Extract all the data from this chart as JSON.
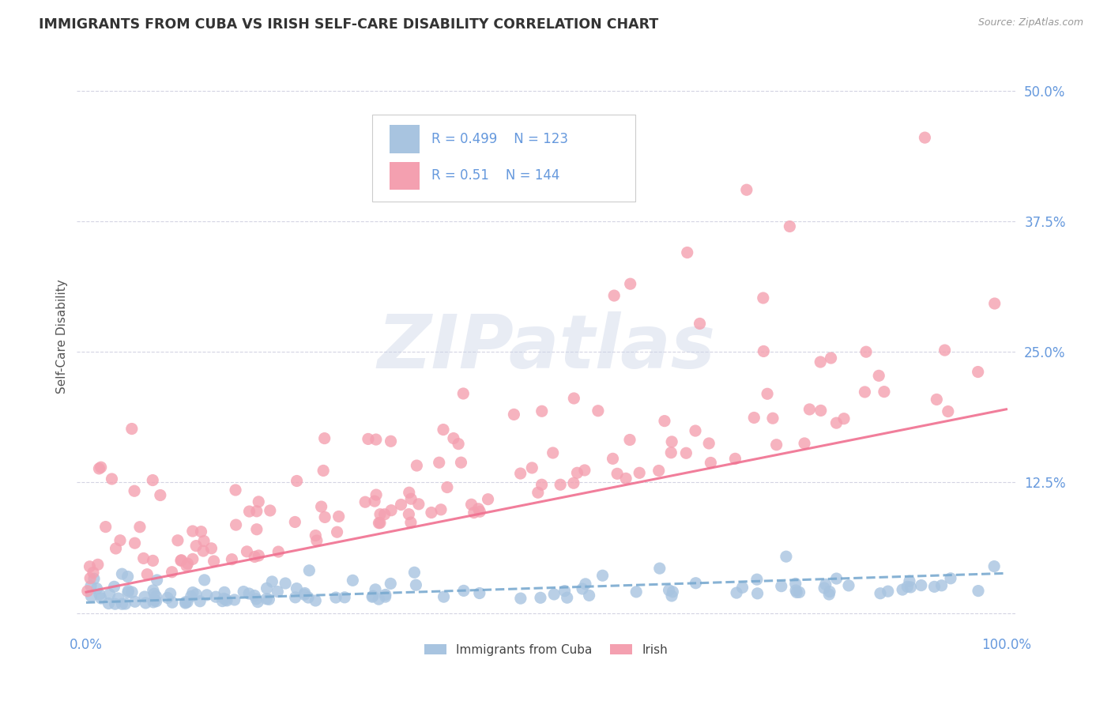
{
  "title": "IMMIGRANTS FROM CUBA VS IRISH SELF-CARE DISABILITY CORRELATION CHART",
  "source": "Source: ZipAtlas.com",
  "ylabel": "Self-Care Disability",
  "ytick_vals": [
    0.0,
    0.125,
    0.25,
    0.375,
    0.5
  ],
  "ytick_labels": [
    "",
    "12.5%",
    "25.0%",
    "37.5%",
    "50.0%"
  ],
  "xlim": [
    -0.01,
    1.01
  ],
  "ylim": [
    -0.015,
    0.545
  ],
  "cuba_R": 0.499,
  "cuba_N": 123,
  "irish_R": 0.51,
  "irish_N": 144,
  "cuba_color": "#a8c4e0",
  "irish_color": "#f4a0b0",
  "cuba_line_color": "#7aaad0",
  "irish_line_color": "#f07090",
  "legend_label_cuba": "Immigrants from Cuba",
  "legend_label_irish": "Irish",
  "watermark_text": "ZIPatlas",
  "background_color": "#ffffff",
  "title_color": "#333333",
  "axis_color": "#6699dd",
  "grid_color": "#d0d0e0",
  "ylabel_color": "#555555",
  "source_color": "#999999",
  "legend_text_color": "#444444"
}
